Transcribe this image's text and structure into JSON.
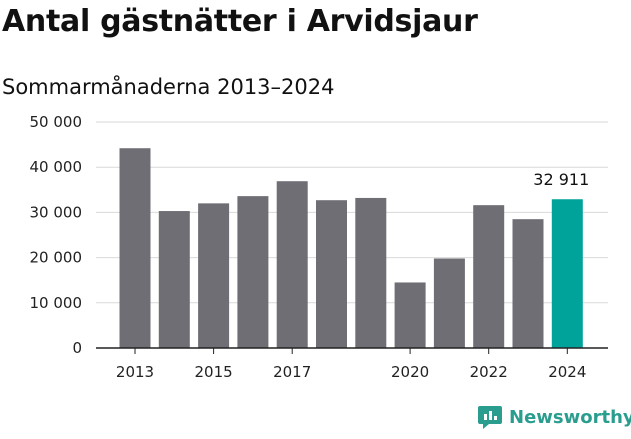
{
  "title": "Antal gästnätter i Arvidsjaur",
  "subtitle": "Sommarmånaderna 2013–2024",
  "brand": {
    "name": "Newsworthy",
    "color": "#2a9d8f"
  },
  "colors": {
    "bar": "#6f6e74",
    "highlight": "#00a39a",
    "grid": "#d9d9d9",
    "axis": "#222222"
  },
  "chart_data": {
    "type": "bar",
    "title": "Antal gästnätter i Arvidsjaur",
    "subtitle": "Sommarmånaderna 2013–2024",
    "categories": [
      "2013",
      "2014",
      "2015",
      "2016",
      "2017",
      "2018",
      "2019",
      "2020",
      "2021",
      "2022",
      "2023",
      "2024"
    ],
    "values": [
      44200,
      30300,
      32000,
      33600,
      36900,
      32700,
      33200,
      14500,
      19800,
      31600,
      28500,
      32911
    ],
    "ylim": [
      0,
      50000
    ],
    "yticks": [
      0,
      10000,
      20000,
      30000,
      40000,
      50000
    ],
    "ytick_labels": [
      "0",
      "10 000",
      "20 000",
      "30 000",
      "40 000",
      "50 000"
    ],
    "xtick_labels": {
      "2013": "2013",
      "2015": "2015",
      "2017": "2017",
      "2020": "2020",
      "2022": "2022",
      "2024": "2024"
    },
    "highlight_index": 11,
    "data_labels": [
      {
        "index": 11,
        "text": "32 911"
      }
    ],
    "grid": true
  }
}
